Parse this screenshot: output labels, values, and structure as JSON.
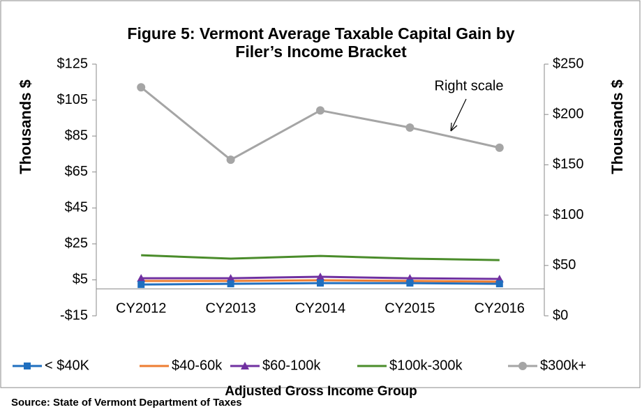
{
  "chart_data": {
    "type": "line",
    "title": [
      "Figure 5: Vermont Average Taxable Capital Gain by",
      "Filer’s Income Bracket"
    ],
    "ylabel": "Thousands $",
    "y2label": "Thousands $",
    "xlabel": "Adjusted Gross Income Group",
    "source": "Source: State of Vermont Department of Taxes",
    "annotation": "Right scale",
    "categories": [
      "CY2012",
      "CY2013",
      "CY2014",
      "CY2015",
      "CY2016"
    ],
    "ylim": [
      -15,
      125
    ],
    "yticks": [
      {
        "value": -15,
        "label": "-$15"
      },
      {
        "value": 5,
        "label": "$5"
      },
      {
        "value": 25,
        "label": "$25"
      },
      {
        "value": 45,
        "label": "$45"
      },
      {
        "value": 65,
        "label": "$65"
      },
      {
        "value": 85,
        "label": "$85"
      },
      {
        "value": 105,
        "label": "$105"
      },
      {
        "value": 125,
        "label": "$125"
      }
    ],
    "y2lim": [
      0,
      250
    ],
    "y2ticks": [
      {
        "value": 0,
        "label": "$0"
      },
      {
        "value": 50,
        "label": "$50"
      },
      {
        "value": 100,
        "label": "$100"
      },
      {
        "value": 150,
        "label": "$150"
      },
      {
        "value": 200,
        "label": "$200"
      },
      {
        "value": 250,
        "label": "$250"
      }
    ],
    "legend": "bottom",
    "series": [
      {
        "name": "< $40K",
        "color": "#1f6fbf",
        "marker": "square",
        "values": [
          2.4,
          2.8,
          3.2,
          3.2,
          2.8
        ]
      },
      {
        "name": "$40-60k",
        "color": "#ed7d31",
        "marker": "none",
        "values": [
          4.4,
          4.4,
          4.8,
          4.4,
          4.0
        ]
      },
      {
        "name": "$60-100k",
        "color": "#7030a0",
        "marker": "triangle",
        "values": [
          5.9,
          5.9,
          6.7,
          5.9,
          5.5
        ]
      },
      {
        "name": "$100k-300k",
        "color": "#4a8c2a",
        "marker": "none",
        "values": [
          18.7,
          16.8,
          18.3,
          16.8,
          16.0
        ]
      },
      {
        "name": "$300k+",
        "color": "#a5a5a5",
        "marker": "circle",
        "axis": "y2",
        "values": [
          227,
          155,
          204,
          187,
          167
        ]
      }
    ]
  }
}
